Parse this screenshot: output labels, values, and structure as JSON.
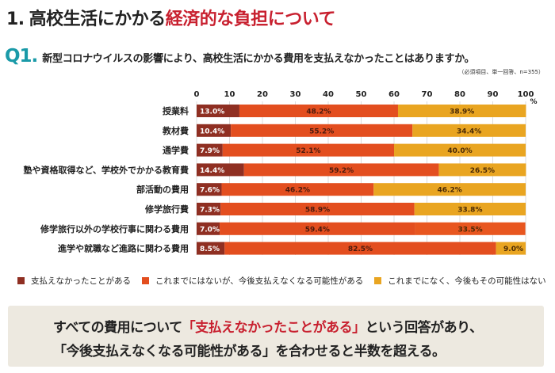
{
  "header": {
    "number": "1.",
    "title_plain": "高校生活にかかる",
    "title_accent": "経済的な負担について"
  },
  "question": {
    "label": "Q1.",
    "text": "新型コロナウイルスの影響により、高校生活にかかる費用を支払えなかったことはありますか。",
    "note": "（必須項目、単一回答、n=355）"
  },
  "colors": {
    "series1": "#8f2f22",
    "series2": "#e34e1f",
    "series3": "#e9a521",
    "series3_alt": "#e8561f",
    "accent_red": "#c8202f",
    "q_teal": "#1a9aa8",
    "summary_bg": "#ede9e0"
  },
  "chart_data": {
    "type": "bar",
    "orientation": "horizontal-stacked-100",
    "categories": [
      "授業料",
      "教材費",
      "通学費",
      "塾や資格取得など、学校外でかかる教育費",
      "部活動の費用",
      "修学旅行費",
      "修学旅行以外の学校行事に関わる費用",
      "進学や就職など進路に関わる費用"
    ],
    "series": [
      {
        "name": "支払えなかったことがある",
        "values": [
          13.0,
          10.4,
          7.9,
          14.4,
          7.6,
          7.3,
          7.0,
          8.5
        ],
        "labels": [
          "13.0%",
          "10.4%",
          "7.9%",
          "14.4%",
          "7.6%",
          "7.3%",
          "7.0%",
          "8.5%"
        ]
      },
      {
        "name": "これまでにはないが、今後支払えなくなる可能性がある",
        "values": [
          48.2,
          55.2,
          52.1,
          59.2,
          46.2,
          58.9,
          59.4,
          82.5
        ],
        "labels": [
          "48.2%",
          "55.2%",
          "52.1%",
          "59.2%",
          "46.2%",
          "58.9%",
          "59.4%",
          "82.5%"
        ]
      },
      {
        "name": "これまでになく、今後もその可能性はない",
        "values": [
          38.9,
          34.4,
          40.0,
          26.5,
          46.2,
          33.8,
          33.5,
          9.0
        ],
        "labels": [
          "38.9%",
          "34.4%",
          "40.0%",
          "26.5%",
          "46.2%",
          "33.8%",
          "33.5%",
          "9.0%"
        ]
      }
    ],
    "xticks": [
      "0",
      "10",
      "20",
      "30",
      "40",
      "50",
      "60",
      "70",
      "80",
      "90",
      "100"
    ],
    "xunit": "%",
    "xlim": [
      0,
      100
    ],
    "grid": true,
    "legend_position": "bottom"
  },
  "summary": {
    "line1_pre": "すべての費用について",
    "line1_accent": "「支払えなかったことがある」",
    "line1_post": "という回答があり、",
    "line2": "「今後支払えなくなる可能性がある」を合わせると半数を超える。"
  }
}
